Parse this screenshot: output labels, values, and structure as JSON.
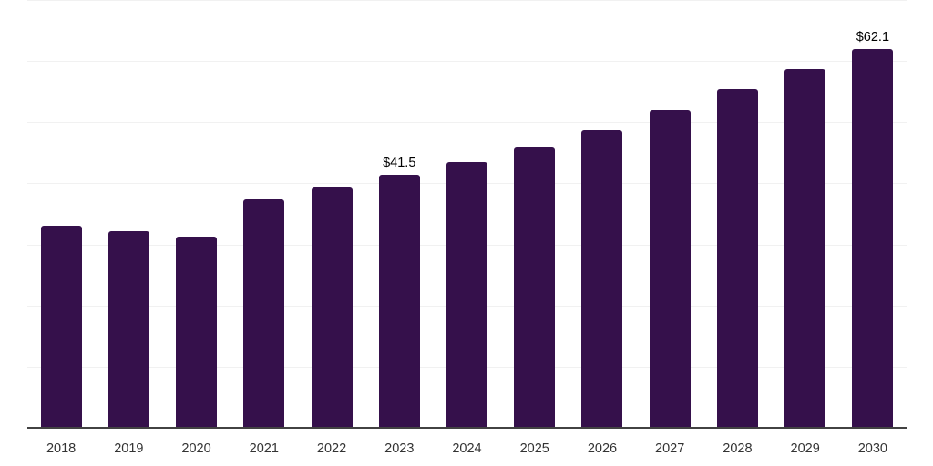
{
  "chart_data": {
    "type": "bar",
    "title": "",
    "xlabel": "",
    "ylabel": "",
    "categories": [
      "2018",
      "2019",
      "2020",
      "2021",
      "2022",
      "2023",
      "2024",
      "2025",
      "2026",
      "2027",
      "2028",
      "2029",
      "2030"
    ],
    "values": [
      33.2,
      32.3,
      31.5,
      37.6,
      39.5,
      41.5,
      43.6,
      46.0,
      48.9,
      52.1,
      55.5,
      58.8,
      62.1
    ],
    "labels": [
      "",
      "",
      "",
      "",
      "",
      "$41.5",
      "",
      "",
      "",
      "",
      "",
      "",
      "$62.1"
    ],
    "ylim": [
      0,
      70
    ],
    "gridlines": [
      10,
      20,
      30,
      40,
      50,
      60,
      70
    ],
    "grid": "horizontal-only",
    "legend": "none",
    "y_tick_labels_visible": false,
    "colors": {
      "bar": "#35104B",
      "gridline": "#f1f1f1",
      "axis_line": "#424242",
      "data_label": "#000000",
      "tick_label": "#333333",
      "background": "#ffffff"
    }
  }
}
